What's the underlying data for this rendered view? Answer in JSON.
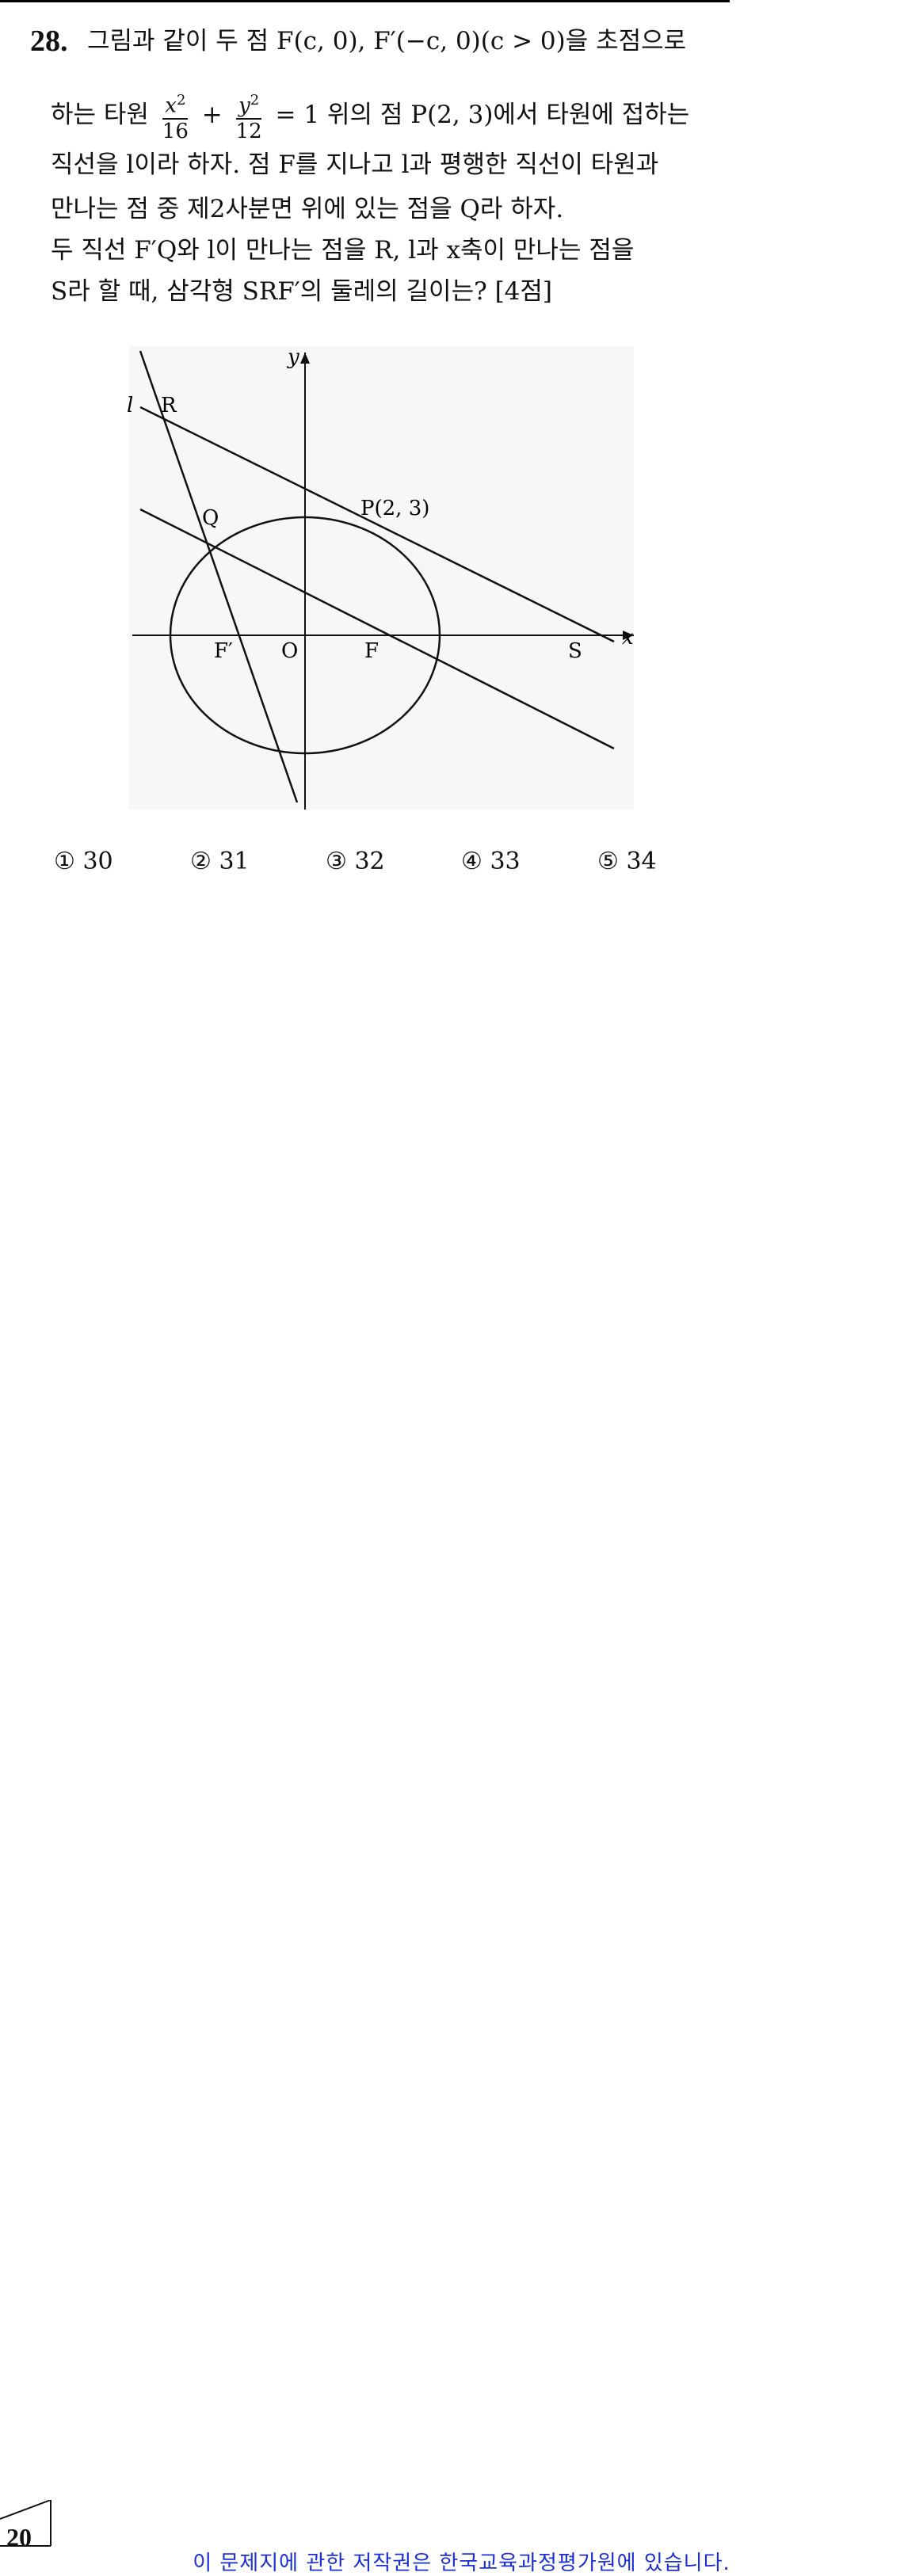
{
  "problem": {
    "number": "28.",
    "line1": "그림과 같이 두 점 F(c, 0), F′(−c, 0)(c > 0)을 초점으로",
    "line2_pre": "하는 타원",
    "frac1_num": "x",
    "frac1_den": "16",
    "plus": "+",
    "frac2_num": "y",
    "frac2_den": "12",
    "exp": "2",
    "line2_post": "= 1 위의 점 P(2, 3)에서 타원에 접하는",
    "line3": "직선을 l이라 하자. 점 F를 지나고 l과 평행한 직선이 타원과",
    "line4": "만나는 점 중 제2사분면 위에 있는 점을 Q라 하자.",
    "line5": "두 직선 F′Q와 l이 만나는 점을 R, l과 x축이 만나는 점을",
    "line6": "S라 할 때, 삼각형 SRF′의 둘레의 길이는? [4점]"
  },
  "figure": {
    "labels": {
      "y_axis": "y",
      "x_axis": "x",
      "l": "l",
      "R": "R",
      "Q": "Q",
      "P": "P(2, 3)",
      "F_prime": "F′",
      "O": "O",
      "F": "F",
      "S": "S"
    }
  },
  "choices": [
    {
      "mark": "①",
      "value": "30"
    },
    {
      "mark": "②",
      "value": "31"
    },
    {
      "mark": "③",
      "value": "32"
    },
    {
      "mark": "④",
      "value": "33"
    },
    {
      "mark": "⑤",
      "value": "34"
    }
  ],
  "footer": {
    "page_number": "20",
    "copyright": "이 문제지에 관한 저작권은 한국교육과정평가원에 있습니다."
  }
}
